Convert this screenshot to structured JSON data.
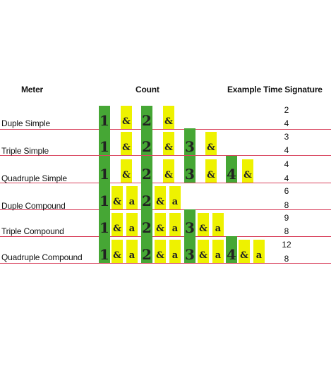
{
  "headers": {
    "meter": "Meter",
    "count": "Count",
    "time_signature": "Example Time Signature"
  },
  "colors": {
    "beat": "#46a735",
    "subdivision": "#eef200",
    "row_line": "#d9455f"
  },
  "rows": [
    {
      "meter": "Duple Simple",
      "time_signature": [
        "2",
        "4"
      ],
      "counts": [
        "1",
        "&",
        "2",
        "&"
      ]
    },
    {
      "meter": "Triple Simple",
      "time_signature": [
        "3",
        "4"
      ],
      "counts": [
        "1",
        "&",
        "2",
        "&",
        "3",
        "&"
      ]
    },
    {
      "meter": "Quadruple Simple",
      "time_signature": [
        "4",
        "4"
      ],
      "counts": [
        "1",
        "&",
        "2",
        "&",
        "3",
        "&",
        "4",
        "&"
      ]
    },
    {
      "meter": "Duple Compound",
      "time_signature": [
        "6",
        "8"
      ],
      "counts": [
        "1",
        "&",
        "a",
        "2",
        "&",
        "a"
      ]
    },
    {
      "meter": "Triple Compound",
      "time_signature": [
        "9",
        "8"
      ],
      "counts": [
        "1",
        "&",
        "a",
        "2",
        "&",
        "a",
        "3",
        "&",
        "a"
      ]
    },
    {
      "meter": "Quadruple Compound",
      "time_signature": [
        "12",
        "8"
      ],
      "counts": [
        "1",
        "&",
        "a",
        "2",
        "&",
        "a",
        "3",
        "&",
        "a",
        "4",
        "&",
        "a"
      ]
    }
  ]
}
